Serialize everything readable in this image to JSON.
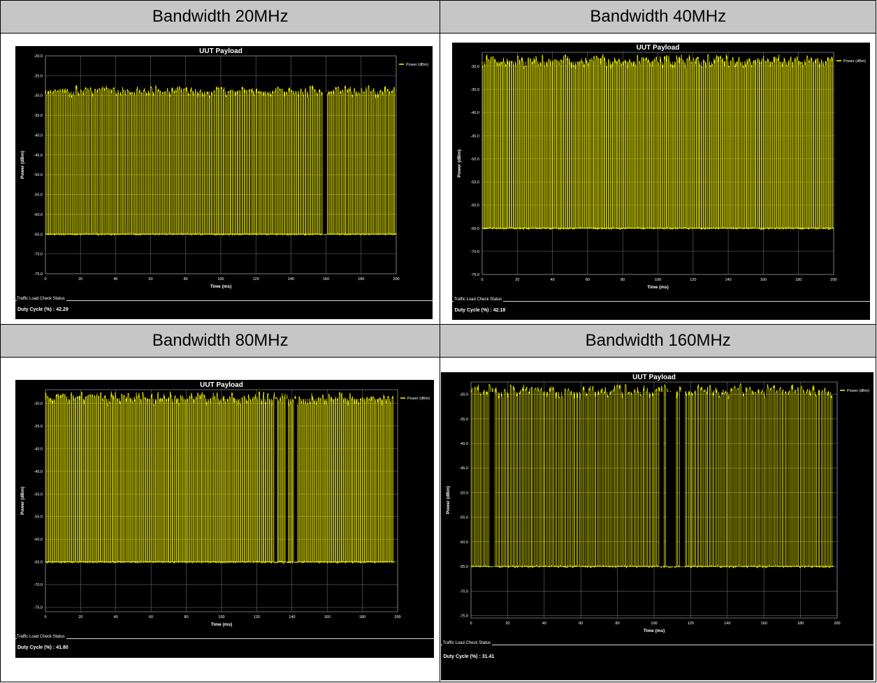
{
  "headers": [
    "Bandwidth 20MHz",
    "Bandwidth 40MHz",
    "Bandwidth 80MHz",
    "Bandwidth 160MHz"
  ],
  "status_title": "Traffic Load Check Status",
  "colors": {
    "trace": "#f2f200",
    "background": "#000000",
    "grid": "#6a6a6a",
    "text": "#ffffff",
    "header_bg": "#c6c6c6"
  },
  "chart_data": [
    {
      "type": "line",
      "title": "UUT Payload",
      "xlabel": "Time (ms)",
      "ylabel": "Power (dBm)",
      "legend": "Power (dBm)",
      "legend_position": "top-right",
      "xlim": [
        0,
        200
      ],
      "ylim": [
        -75,
        -20
      ],
      "xticks": [
        0,
        20,
        40,
        60,
        80,
        100,
        120,
        140,
        160,
        180,
        200
      ],
      "yticks": [
        -20.0,
        -25.0,
        -30.0,
        -35.0,
        -40.0,
        -45.0,
        -50.0,
        -55.0,
        -60.0,
        -65.0,
        -70.0,
        -75.0
      ],
      "ytick_labels": [
        "-20.0",
        "-25.0",
        "-30.0",
        "-35.0",
        "-40.0",
        "-45.0",
        "-50.0",
        "-55.0",
        "-60.0",
        "-65.0",
        "-70.0",
        "-75.0"
      ],
      "grid": true,
      "high_level": -29,
      "low_level": -65,
      "trace_end": 200,
      "burst_count": 150,
      "gaps": [
        [
          158,
          160.5
        ]
      ],
      "status_text": "Duty Cycle (%) : 42.29"
    },
    {
      "type": "line",
      "title": "UUT Payload",
      "xlabel": "Time (ms)",
      "ylabel": "Power (dBm)",
      "legend": "Power (dBm)",
      "legend_position": "top-right",
      "xlim": [
        0,
        200
      ],
      "ylim": [
        -75,
        -27
      ],
      "xticks": [
        0,
        20,
        40,
        60,
        80,
        100,
        120,
        140,
        160,
        180,
        200
      ],
      "yticks": [
        -30.0,
        -35.0,
        -40.0,
        -45.0,
        -50.0,
        -55.0,
        -60.0,
        -65.0,
        -70.0,
        -75.0
      ],
      "ytick_labels": [
        "-30.0",
        "-35.0",
        "-40.0",
        "-45.0",
        "-50.0",
        "-55.0",
        "-60.0",
        "-65.0",
        "-70.0",
        "-75.0"
      ],
      "grid": true,
      "high_level": -29,
      "low_level": -65,
      "trace_end": 200,
      "burst_count": 170,
      "gaps": [],
      "status_text": "Duty Cycle (%) : 42.18"
    },
    {
      "type": "line",
      "title": "UUT Payload",
      "xlabel": "Time (ms)",
      "ylabel": "Power (dBm)",
      "legend": "Power (dBm)",
      "legend_position": "top-right",
      "xlim": [
        0,
        200
      ],
      "ylim": [
        -76,
        -27
      ],
      "xticks": [
        0,
        20,
        40,
        60,
        80,
        100,
        120,
        140,
        160,
        180,
        200
      ],
      "yticks": [
        -30.0,
        -35.0,
        -40.0,
        -45.0,
        -50.0,
        -55.0,
        -60.0,
        -65.0,
        -70.0,
        -75.0
      ],
      "ytick_labels": [
        "-30.0",
        "-35.0",
        "-40.0",
        "-45.0",
        "-50.0",
        "-55.0",
        "-60.0",
        "-65.0",
        "-70.0",
        "-75.0"
      ],
      "grid": true,
      "high_level": -29,
      "low_level": -65,
      "trace_end": 198,
      "burst_count": 165,
      "gaps": [
        [
          130,
          131.5
        ],
        [
          136.5,
          137.5
        ],
        [
          141,
          143
        ]
      ],
      "status_text": "Duty Cycle (%) : 41.80"
    },
    {
      "type": "line",
      "title": "UUT Payload",
      "xlabel": "Time (ms)",
      "ylabel": "Power (dBm)",
      "legend": "Power (dBm)",
      "legend_position": "top-right",
      "xlim": [
        0,
        200
      ],
      "ylim": [
        -75.5,
        -27.5
      ],
      "xticks": [
        0,
        20,
        40,
        60,
        80,
        100,
        120,
        140,
        160,
        180,
        200
      ],
      "yticks": [
        -30.0,
        -35.0,
        -40.0,
        -45.0,
        -50.0,
        -55.0,
        -60.0,
        -65.0,
        -70.0,
        -75.0
      ],
      "ytick_labels": [
        "-30.0",
        "-35.0",
        "-40.0",
        "-45.0",
        "-50.0",
        "-55.0",
        "-60.0",
        "-65.0",
        "-70.0",
        "-75.0"
      ],
      "grid": true,
      "high_level": -29.5,
      "low_level": -65,
      "trace_end": 198,
      "burst_count": 120,
      "gaps": [
        [
          10,
          13
        ],
        [
          103,
          105
        ],
        [
          107,
          112
        ],
        [
          114,
          117
        ]
      ],
      "status_text": "Duty Cycle (%) : 31.41"
    }
  ]
}
